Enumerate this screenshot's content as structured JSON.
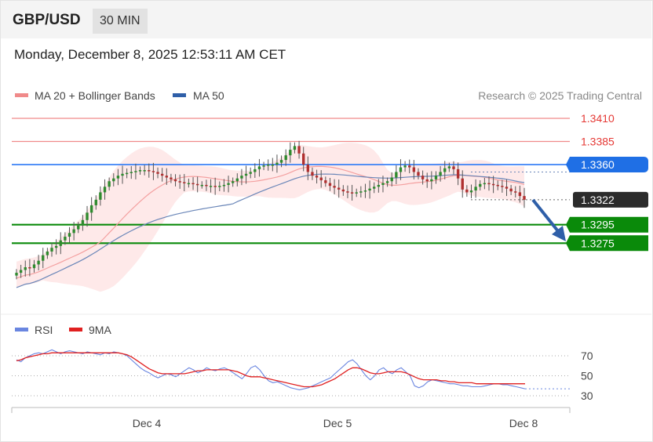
{
  "header": {
    "pair": "GBP/USD",
    "timeframe": "30 MIN"
  },
  "timestamp": "Monday, December 8, 2025 12:53:11 AM CET",
  "credit": "Research © 2025 Trading Central",
  "legend": {
    "ma20_bb": "MA 20 + Bollinger Bands",
    "ma50": "MA 50",
    "rsi": "RSI",
    "rsi_ma": "9MA"
  },
  "colors": {
    "red_level": "#f08a8a",
    "blue_level": "#3b82f6",
    "green_level": "#0a8a0a",
    "ma20": "#f4a0a0",
    "ma50": "#6a86b8",
    "band_fill": "#fde2e2",
    "rsi": "#6a86e0",
    "rsi_ma": "#e02020",
    "arrow": "#2f5fa8"
  },
  "chart_data": [
    {
      "type": "candlestick",
      "title": "",
      "x_labels": [
        "Dec 4",
        "Dec 5",
        "Dec 8"
      ],
      "levels": [
        {
          "value": 1.341,
          "label": "1.3410",
          "kind": "resistance",
          "color": "#e53935"
        },
        {
          "value": 1.3385,
          "label": "1.3385",
          "kind": "resistance",
          "color": "#e53935"
        },
        {
          "value": 1.336,
          "label": "1.3360",
          "kind": "pivot",
          "color": "#1f6fe5"
        },
        {
          "value": 1.3322,
          "label": "1.3322",
          "kind": "last-price",
          "color": "#333333"
        },
        {
          "value": 1.3295,
          "label": "1.3295",
          "kind": "support",
          "color": "#0a8a0a"
        },
        {
          "value": 1.3275,
          "label": "1.3275",
          "kind": "support",
          "color": "#0a8a0a"
        }
      ],
      "ylim": [
        1.3205,
        1.3425
      ],
      "trend": "down",
      "close": [
        1.3243,
        1.3246,
        1.3249,
        1.3248,
        1.3252,
        1.3256,
        1.3262,
        1.3266,
        1.327,
        1.3272,
        1.3278,
        1.3282,
        1.3286,
        1.329,
        1.3294,
        1.33,
        1.3308,
        1.3316,
        1.3322,
        1.333,
        1.3336,
        1.3342,
        1.3345,
        1.3348,
        1.335,
        1.3351,
        1.3352,
        1.3353,
        1.3354,
        1.3354,
        1.3353,
        1.3352,
        1.335,
        1.3348,
        1.3346,
        1.3344,
        1.3342,
        1.3341,
        1.334,
        1.334,
        1.3339,
        1.3338,
        1.3338,
        1.3337,
        1.3337,
        1.3336,
        1.3337,
        1.3338,
        1.334,
        1.3342,
        1.3345,
        1.3348,
        1.335,
        1.3352,
        1.3355,
        1.3358,
        1.3359,
        1.336,
        1.336,
        1.3362,
        1.3365,
        1.337,
        1.3376,
        1.338,
        1.3372,
        1.336,
        1.3352,
        1.3348,
        1.3346,
        1.3343,
        1.334,
        1.3337,
        1.3335,
        1.3333,
        1.3331,
        1.333,
        1.3329,
        1.333,
        1.3331,
        1.3332,
        1.3334,
        1.3336,
        1.3338,
        1.334,
        1.3342,
        1.3346,
        1.3352,
        1.3357,
        1.3359,
        1.3357,
        1.3352,
        1.3348,
        1.3344,
        1.3342,
        1.3344,
        1.3348,
        1.3352,
        1.3356,
        1.3358,
        1.3355,
        1.3345,
        1.3333,
        1.333,
        1.3332,
        1.3336,
        1.3339,
        1.334,
        1.3339,
        1.3338,
        1.3337,
        1.3336,
        1.3334,
        1.3331,
        1.333,
        1.3326,
        1.3322
      ]
    },
    {
      "type": "line",
      "title": "",
      "series": [
        {
          "name": "RSI"
        },
        {
          "name": "9MA"
        }
      ],
      "ylim": [
        22,
        80
      ],
      "yticks": [
        70,
        50,
        30
      ],
      "rsi": [
        66,
        64,
        68,
        70,
        72,
        73,
        72,
        74,
        76,
        74,
        72,
        74,
        75,
        74,
        73,
        72,
        74,
        73,
        72,
        71,
        73,
        72,
        74,
        73,
        72,
        70,
        66,
        62,
        58,
        55,
        53,
        50,
        48,
        50,
        52,
        51,
        49,
        52,
        55,
        58,
        56,
        53,
        55,
        58,
        56,
        55,
        57,
        58,
        56,
        53,
        50,
        47,
        52,
        58,
        60,
        56,
        50,
        45,
        43,
        44,
        42,
        40,
        38,
        37,
        36,
        37,
        38,
        40,
        42,
        44,
        46,
        48,
        52,
        56,
        60,
        64,
        66,
        62,
        56,
        50,
        46,
        50,
        56,
        58,
        54,
        52,
        56,
        58,
        54,
        50,
        40,
        38,
        40,
        44,
        46,
        45,
        44,
        43,
        42,
        42,
        41,
        40,
        40,
        39,
        39,
        39,
        40,
        41,
        42,
        42,
        41,
        41,
        40,
        39,
        38,
        37
      ],
      "ma": [
        65,
        66,
        68,
        69,
        70,
        71,
        72,
        72,
        73,
        73,
        73,
        73,
        73,
        73,
        73,
        73,
        73,
        73,
        73,
        73,
        73,
        73,
        73,
        73,
        72,
        71,
        69,
        66,
        63,
        60,
        57,
        55,
        53,
        52,
        52,
        52,
        52,
        52,
        52,
        53,
        54,
        55,
        55,
        56,
        56,
        56,
        56,
        56,
        56,
        55,
        54,
        52,
        50,
        49,
        49,
        49,
        48,
        47,
        46,
        45,
        44,
        43,
        42,
        41,
        40,
        39,
        39,
        39,
        40,
        41,
        43,
        45,
        47,
        50,
        53,
        56,
        58,
        58,
        57,
        55,
        53,
        52,
        52,
        53,
        54,
        54,
        54,
        54,
        53,
        51,
        49,
        47,
        46,
        46,
        46,
        46,
        45,
        45,
        44,
        44,
        43,
        43,
        43,
        43,
        42,
        42,
        42,
        42,
        42,
        42,
        42,
        42,
        42,
        42,
        42,
        42
      ]
    }
  ]
}
